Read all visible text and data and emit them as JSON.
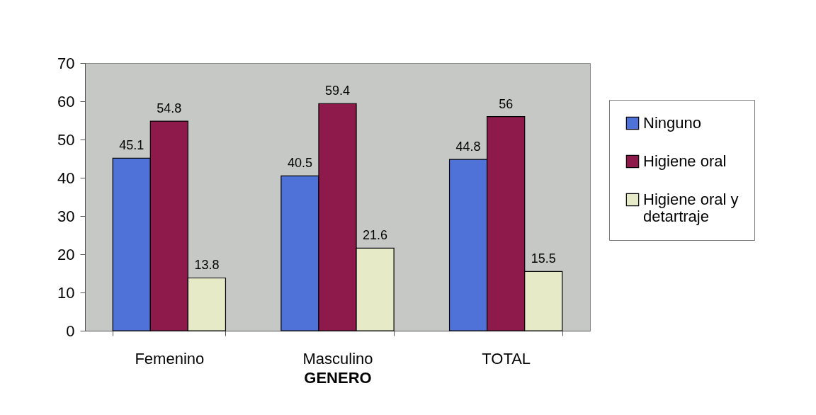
{
  "chart_data": {
    "type": "bar",
    "xlabel": "GENERO",
    "categories": [
      "Femenino",
      "Masculino",
      "TOTAL"
    ],
    "series": [
      {
        "name": "Ninguno",
        "color": "#4f72d9",
        "values": [
          45.1,
          40.5,
          44.8
        ]
      },
      {
        "name": "Higiene oral",
        "color": "#8e1a4c",
        "values": [
          54.8,
          59.4,
          56
        ]
      },
      {
        "name": "Higiene oral y detartraje",
        "color": "#e6eac6",
        "values": [
          13.8,
          21.6,
          15.5
        ]
      }
    ],
    "ylim": [
      0,
      70
    ],
    "yticks": [
      0,
      10,
      20,
      30,
      40,
      50,
      60,
      70
    ],
    "data_labels": true,
    "legend": "right"
  }
}
